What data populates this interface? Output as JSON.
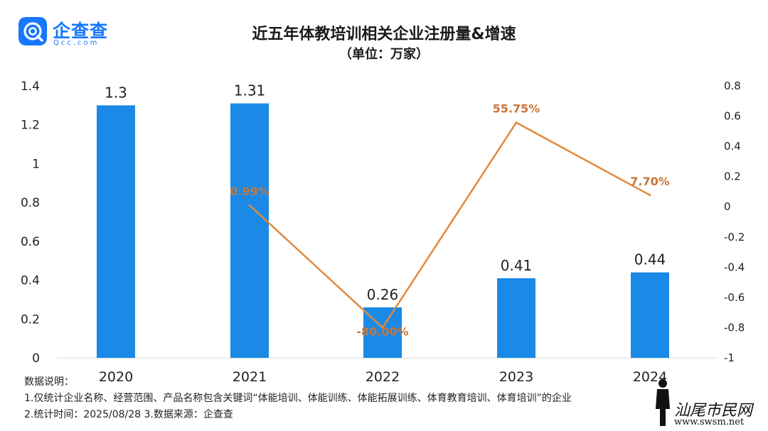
{
  "header": {
    "logo_cn": "企查查",
    "logo_en": "Qcc.com",
    "title": "近五年体教培训相关企业注册量&增速",
    "subtitle": "（单位：万家）"
  },
  "colors": {
    "bar": "#1a8ae6",
    "line": "#e08a3c",
    "label_line": "#c8763a",
    "brand": "#1677ff"
  },
  "chart_data": {
    "type": "bar",
    "categories": [
      "2020",
      "2021",
      "2022",
      "2023",
      "2024"
    ],
    "series": [
      {
        "type": "bar",
        "axis": "left",
        "values": [
          1.3,
          1.31,
          0.26,
          0.41,
          0.44
        ],
        "labels": [
          "1.3",
          "1.31",
          "0.26",
          "0.41",
          "0.44"
        ]
      },
      {
        "type": "line",
        "axis": "right",
        "values": [
          null,
          0.0099,
          -0.8,
          0.5575,
          0.077
        ],
        "labels": [
          "",
          "0.99%",
          "-80.00%",
          "55.75%",
          "7.70%"
        ]
      }
    ],
    "y_left": {
      "range": [
        0,
        1.4
      ],
      "ticks": [
        "0",
        "0.2",
        "0.4",
        "0.6",
        "0.8",
        "1",
        "1.2",
        "1.4"
      ]
    },
    "y_right": {
      "range": [
        -1,
        0.8
      ],
      "ticks": [
        "-1",
        "-0.8",
        "-0.6",
        "-0.4",
        "-0.2",
        "0",
        "0.2",
        "0.4",
        "0.6",
        "0.8"
      ]
    },
    "grid": false,
    "legend": "none"
  },
  "notes": {
    "line1": "数据说明：",
    "line2": "1.仅统计企业名称、经营范围、产品名称包含关键词“体能培训、体能训练、体能拓展训练、体育教育培训、体育培训”的企业",
    "line3": "2.统计时间：2025/08/28  3.数据来源：企查查"
  },
  "watermark": {
    "text": "汕尾市民网",
    "url": "www.swsm.net"
  }
}
